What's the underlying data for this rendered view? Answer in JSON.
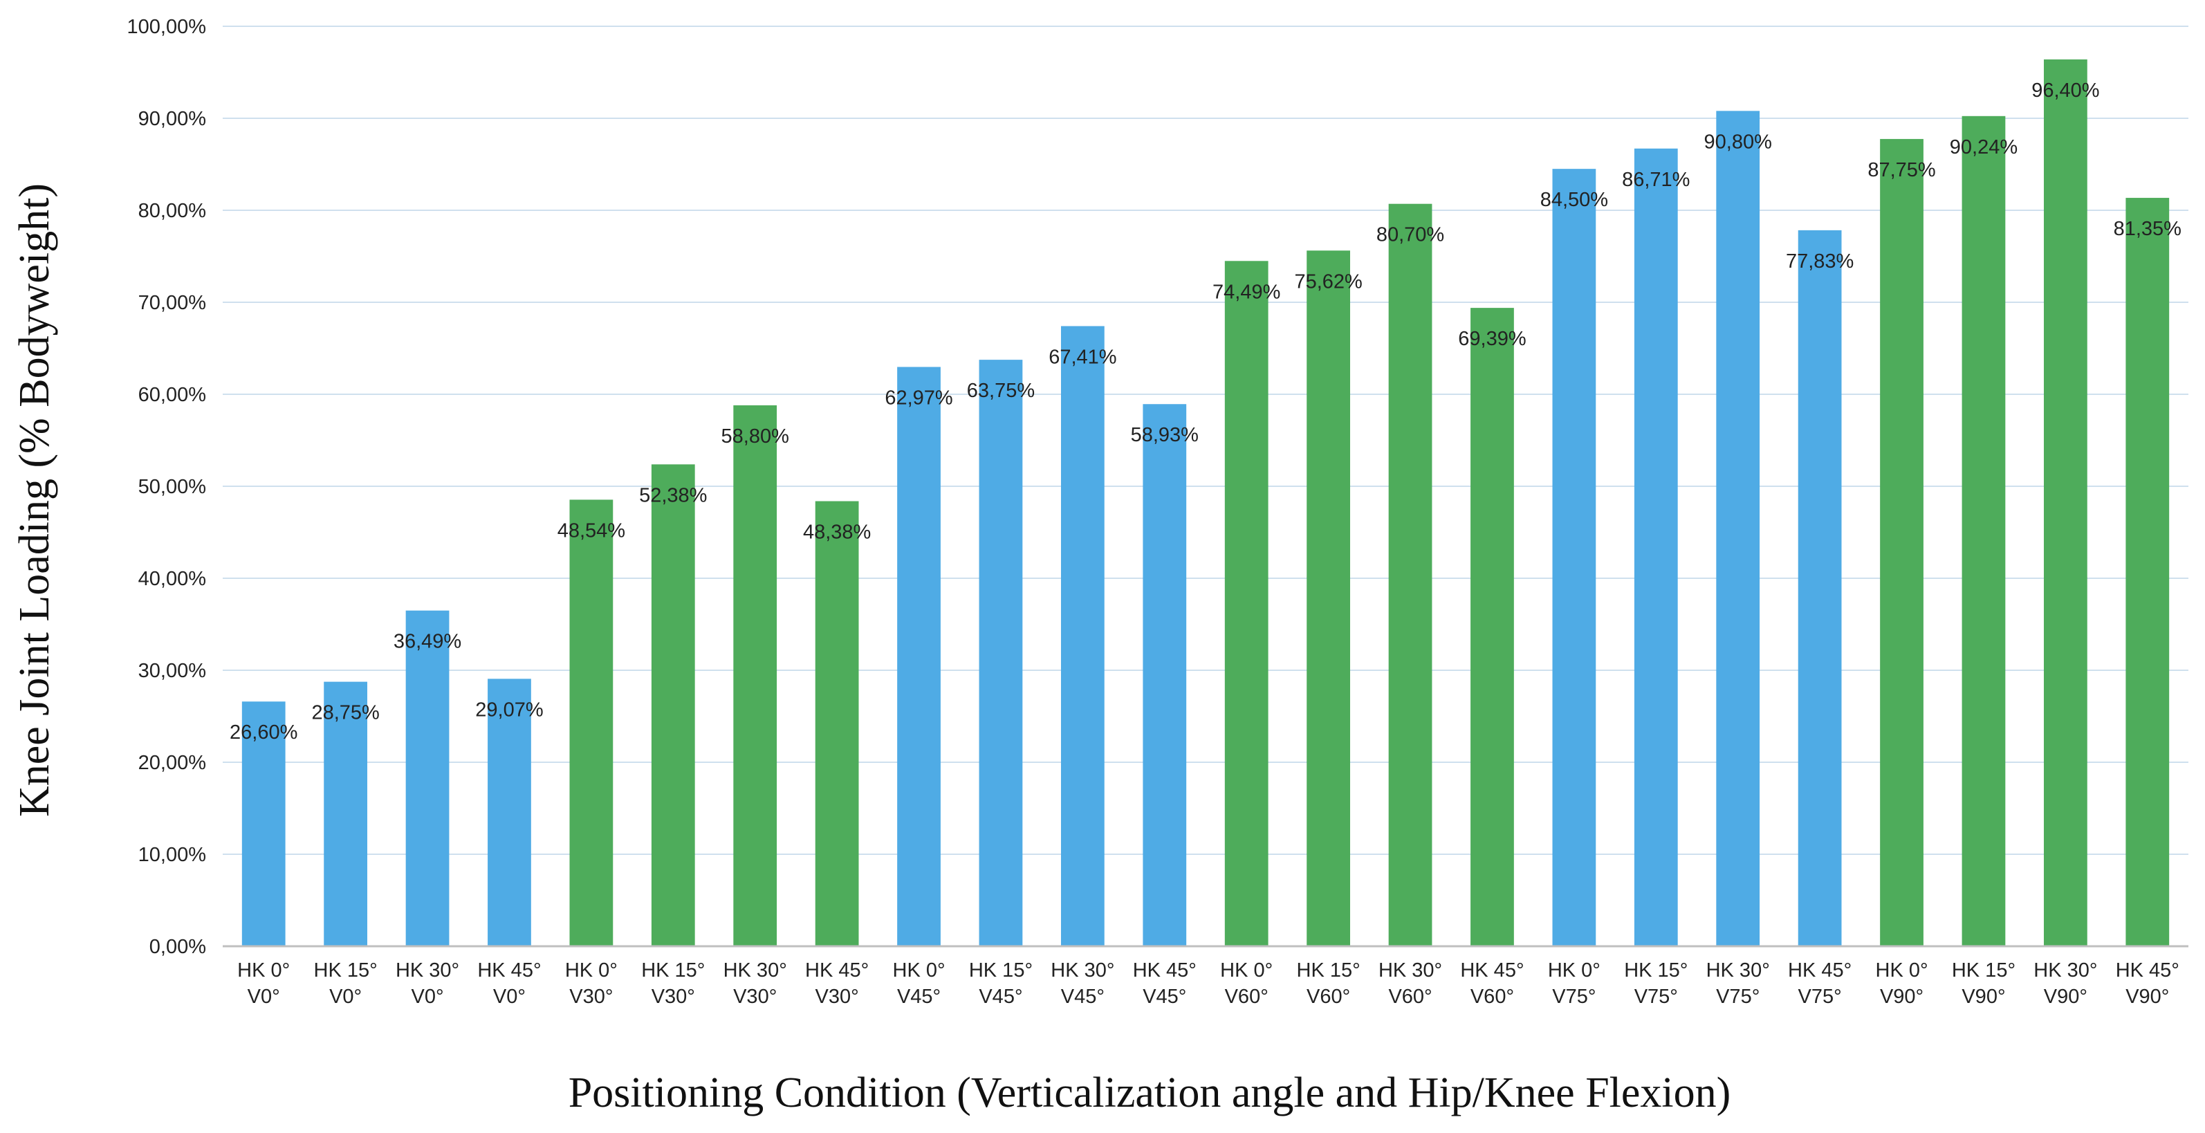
{
  "chart_data": {
    "type": "bar",
    "title": "",
    "xlabel": "Positioning Condition (Verticalization angle and Hip/Knee Flexion)",
    "ylabel": "Knee Joint Loading (% Bodyweight)",
    "ylim": [
      0,
      100
    ],
    "grid": true,
    "legend": "none",
    "y_tick_labels": [
      "0,00%",
      "10,00%",
      "20,00%",
      "30,00%",
      "40,00%",
      "50,00%",
      "60,00%",
      "70,00%",
      "80,00%",
      "90,00%",
      "100,00%"
    ],
    "colors": {
      "blue": "#4FABE5",
      "green": "#4EAC5B",
      "grid": "#CFE0EE",
      "axis": "#BFBFBF"
    },
    "categories": [
      {
        "line1": "HK 0°",
        "line2": "V0°"
      },
      {
        "line1": "HK 15°",
        "line2": "V0°"
      },
      {
        "line1": "HK 30°",
        "line2": "V0°"
      },
      {
        "line1": "HK 45°",
        "line2": "V0°"
      },
      {
        "line1": "HK 0°",
        "line2": "V30°"
      },
      {
        "line1": "HK 15°",
        "line2": "V30°"
      },
      {
        "line1": "HK 30°",
        "line2": "V30°"
      },
      {
        "line1": "HK 45°",
        "line2": "V30°"
      },
      {
        "line1": "HK 0°",
        "line2": "V45°"
      },
      {
        "line1": "HK 15°",
        "line2": "V45°"
      },
      {
        "line1": "HK 30°",
        "line2": "V45°"
      },
      {
        "line1": "HK 45°",
        "line2": "V45°"
      },
      {
        "line1": "HK 0°",
        "line2": "V60°"
      },
      {
        "line1": "HK 15°",
        "line2": "V60°"
      },
      {
        "line1": "HK 30°",
        "line2": "V60°"
      },
      {
        "line1": "HK 45°",
        "line2": "V60°"
      },
      {
        "line1": "HK 0°",
        "line2": "V75°"
      },
      {
        "line1": "HK 15°",
        "line2": "V75°"
      },
      {
        "line1": "HK 30°",
        "line2": "V75°"
      },
      {
        "line1": "HK 45°",
        "line2": "V75°"
      },
      {
        "line1": "HK 0°",
        "line2": "V90°"
      },
      {
        "line1": "HK 15°",
        "line2": "V90°"
      },
      {
        "line1": "HK 30°",
        "line2": "V90°"
      },
      {
        "line1": "HK 45°",
        "line2": "V90°"
      }
    ],
    "values": [
      26.6,
      28.75,
      36.49,
      29.07,
      48.54,
      52.38,
      58.8,
      48.38,
      62.97,
      63.75,
      67.41,
      58.93,
      74.49,
      75.62,
      80.7,
      69.39,
      84.5,
      86.71,
      90.8,
      77.83,
      87.75,
      90.24,
      96.4,
      81.35
    ],
    "data_labels": [
      "26,60%",
      "28,75%",
      "36,49%",
      "29,07%",
      "48,54%",
      "52,38%",
      "58,80%",
      "48,38%",
      "62,97%",
      "63,75%",
      "67,41%",
      "58,93%",
      "74,49%",
      "75,62%",
      "80,70%",
      "69,39%",
      "84,50%",
      "86,71%",
      "90,80%",
      "77,83%",
      "87,75%",
      "90,24%",
      "96,40%",
      "81,35%"
    ],
    "bar_colors": [
      "blue",
      "blue",
      "blue",
      "blue",
      "green",
      "green",
      "green",
      "green",
      "blue",
      "blue",
      "blue",
      "blue",
      "green",
      "green",
      "green",
      "green",
      "blue",
      "blue",
      "blue",
      "blue",
      "green",
      "green",
      "green",
      "green"
    ]
  }
}
